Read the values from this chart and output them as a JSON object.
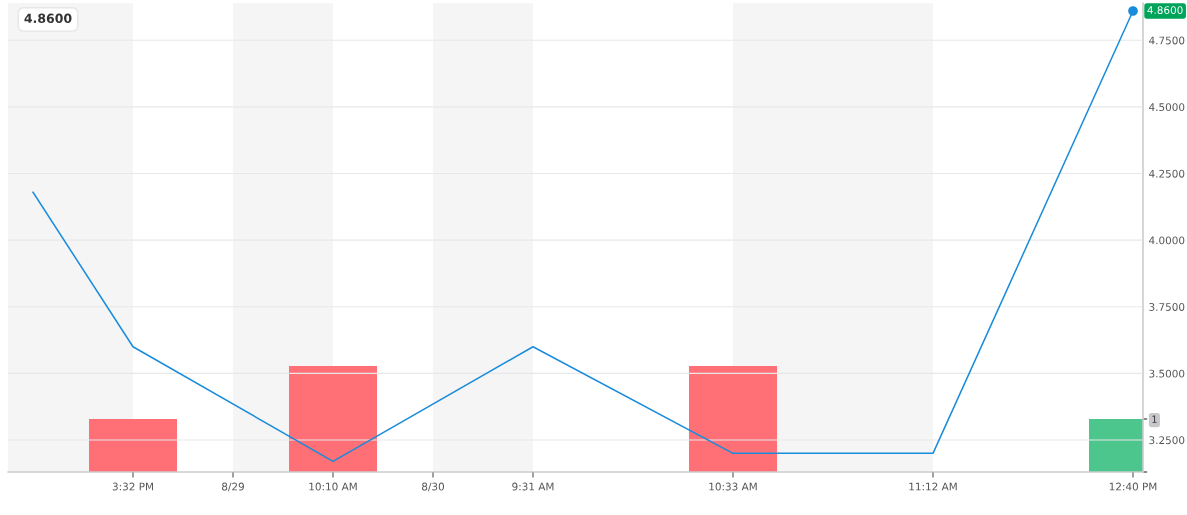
{
  "chart_data": {
    "type": "line",
    "categories": [
      null,
      "3:32 PM",
      "8/29",
      "10:10 AM",
      "8/30",
      "9:31 AM",
      null,
      "10:33 AM",
      null,
      "11:12 AM",
      null,
      "12:40 PM"
    ],
    "series": [
      {
        "color": "#1a8cdb",
        "values": [
          4.18,
          3.6,
          null,
          3.17,
          null,
          3.6,
          null,
          3.2,
          null,
          3.2,
          null,
          4.86
        ]
      },
      {
        "type": "bar",
        "axis": "y2",
        "values": [
          null,
          1,
          null,
          2,
          null,
          null,
          null,
          2,
          null,
          null,
          null,
          1
        ],
        "colors": [
          null,
          "#ff6f76",
          null,
          "#ff6f76",
          null,
          null,
          null,
          "#ff6f76",
          null,
          null,
          null,
          "#4cc68d"
        ]
      }
    ],
    "ylim": [
      3.13,
      4.89
    ],
    "yticks": [
      {
        "value": 3.25,
        "label": "3.2500"
      },
      {
        "value": 3.5,
        "label": "3.5000"
      },
      {
        "value": 3.75,
        "label": "3.7500"
      },
      {
        "value": 4.0,
        "label": "4.0000"
      },
      {
        "value": 4.25,
        "label": "4.2500"
      },
      {
        "value": 4.5,
        "label": "4.5000"
      },
      {
        "value": 4.75,
        "label": "4.7500"
      }
    ],
    "y2lim": [
      0,
      8.85
    ],
    "y2ticks": [
      {
        "value": 0,
        "label": null
      },
      {
        "value": 1,
        "label": "1"
      }
    ],
    "grid": "y",
    "marker": "none",
    "line_style": "solid",
    "bands": [
      {
        "axis": "x",
        "from": "8/29",
        "to": "10:10 AM",
        "color": "#f5f5f5"
      },
      {
        "axis": "x",
        "from": "8/30",
        "to": "9:31 AM",
        "color": "#f5f5f5"
      },
      {
        "axis": "x",
        "from": "10:33 AM",
        "to": "11:12 AM",
        "color": "#f5f5f5"
      }
    ],
    "annotations": [
      "4.8600",
      {
        "text": "4.8600",
        "x": "12:40 PM",
        "y": 4.86
      }
    ]
  }
}
